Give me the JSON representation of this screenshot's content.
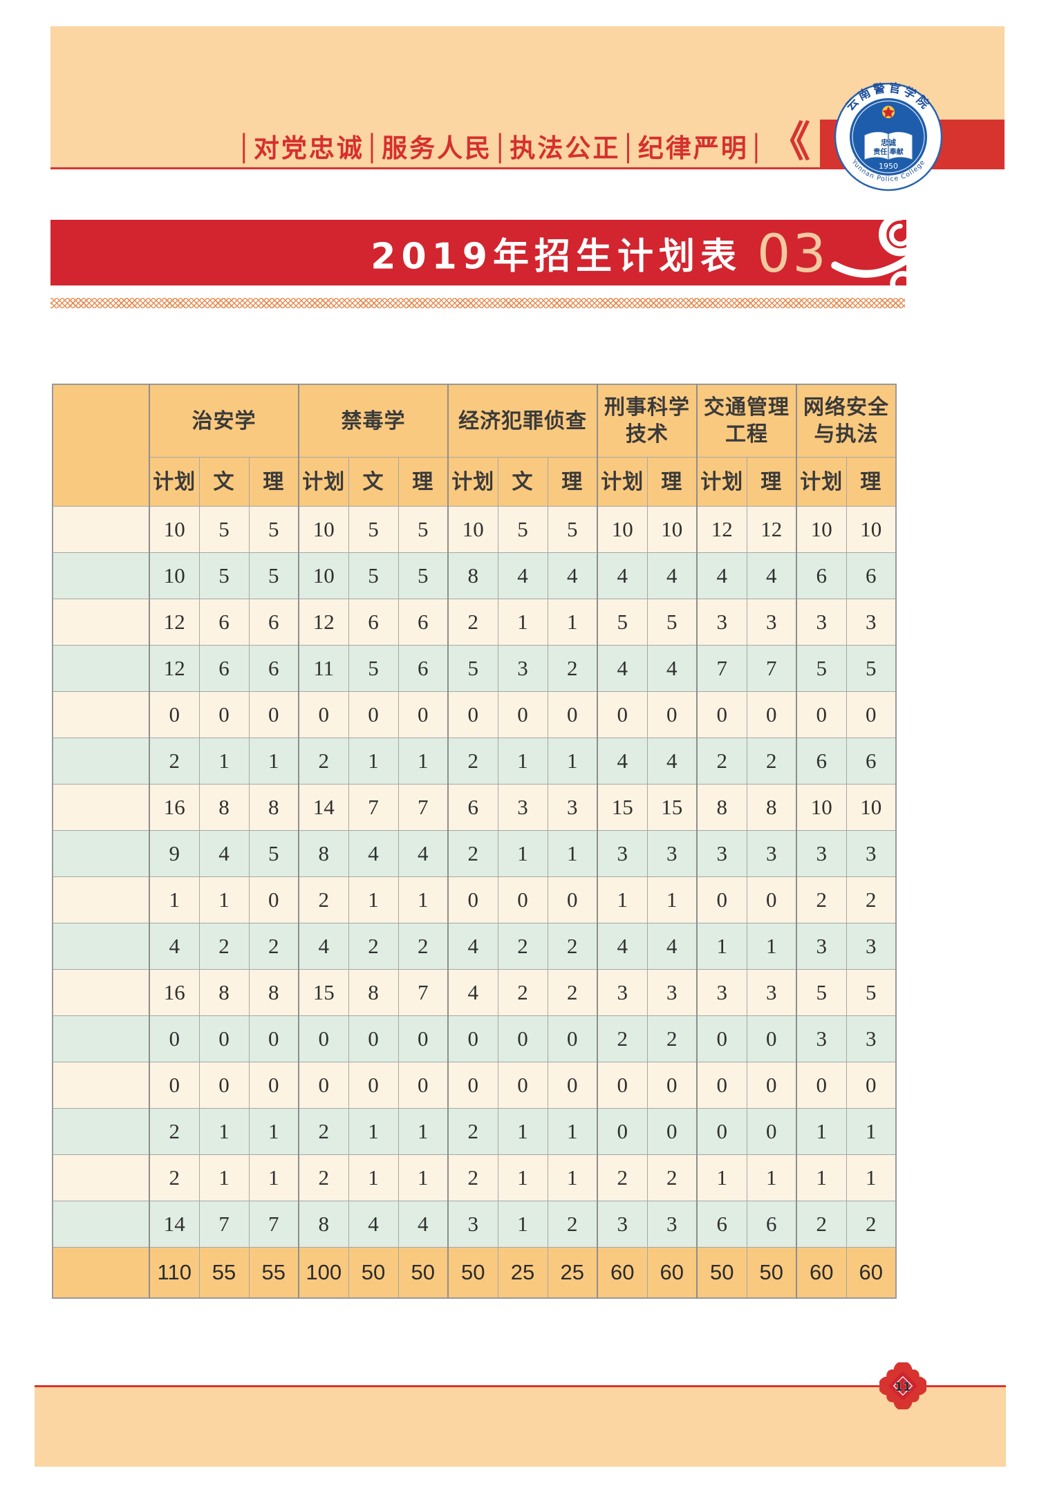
{
  "page": {
    "slogan": "│对党忠诚│服务人民│执法公正│纪律严明│",
    "banner": {
      "title": "2019年招生计划表",
      "page_no": "03"
    },
    "footer": {
      "page_no": "11"
    },
    "colors": {
      "banner_red": "#d2252f",
      "accent_red": "#d7342f",
      "panel_peach": "#fbd5a2",
      "header_orange": "#f9c97f",
      "row_cream": "#fdf3e2",
      "row_green": "#dfede3",
      "pattern_orange": "#e98a4f",
      "logo_blue": "#1e5dab"
    }
  },
  "logo": {
    "arc_top": "云南警官学院",
    "motto_line1": "忠诚",
    "motto_line2": "责任 奉献",
    "year": "1950",
    "arc_bottom": "Yunnan Police College"
  },
  "table": {
    "groups": [
      {
        "label": "治安学",
        "cols": [
          "计划",
          "文",
          "理"
        ]
      },
      {
        "label": "禁毒学",
        "cols": [
          "计划",
          "文",
          "理"
        ]
      },
      {
        "label": "经济犯罪侦查",
        "cols": [
          "计划",
          "文",
          "理"
        ]
      },
      {
        "label": "刑事科学技术",
        "cols": [
          "计划",
          "理"
        ]
      },
      {
        "label": "交通管理工程",
        "cols": [
          "计划",
          "理"
        ]
      },
      {
        "label": "网络安全与执法",
        "cols": [
          "计划",
          "理"
        ]
      }
    ],
    "rows": [
      [
        10,
        5,
        5,
        10,
        5,
        5,
        10,
        5,
        5,
        10,
        10,
        12,
        12,
        10,
        10
      ],
      [
        10,
        5,
        5,
        10,
        5,
        5,
        8,
        4,
        4,
        4,
        4,
        4,
        4,
        6,
        6
      ],
      [
        12,
        6,
        6,
        12,
        6,
        6,
        2,
        1,
        1,
        5,
        5,
        3,
        3,
        3,
        3
      ],
      [
        12,
        6,
        6,
        11,
        5,
        6,
        5,
        3,
        2,
        4,
        4,
        7,
        7,
        5,
        5
      ],
      [
        0,
        0,
        0,
        0,
        0,
        0,
        0,
        0,
        0,
        0,
        0,
        0,
        0,
        0,
        0
      ],
      [
        2,
        1,
        1,
        2,
        1,
        1,
        2,
        1,
        1,
        4,
        4,
        2,
        2,
        6,
        6
      ],
      [
        16,
        8,
        8,
        14,
        7,
        7,
        6,
        3,
        3,
        15,
        15,
        8,
        8,
        10,
        10
      ],
      [
        9,
        4,
        5,
        8,
        4,
        4,
        2,
        1,
        1,
        3,
        3,
        3,
        3,
        3,
        3
      ],
      [
        1,
        1,
        0,
        2,
        1,
        1,
        0,
        0,
        0,
        1,
        1,
        0,
        0,
        2,
        2
      ],
      [
        4,
        2,
        2,
        4,
        2,
        2,
        4,
        2,
        2,
        4,
        4,
        1,
        1,
        3,
        3
      ],
      [
        16,
        8,
        8,
        15,
        8,
        7,
        4,
        2,
        2,
        3,
        3,
        3,
        3,
        5,
        5
      ],
      [
        0,
        0,
        0,
        0,
        0,
        0,
        0,
        0,
        0,
        2,
        2,
        0,
        0,
        3,
        3
      ],
      [
        0,
        0,
        0,
        0,
        0,
        0,
        0,
        0,
        0,
        0,
        0,
        0,
        0,
        0,
        0
      ],
      [
        2,
        1,
        1,
        2,
        1,
        1,
        2,
        1,
        1,
        0,
        0,
        0,
        0,
        1,
        1
      ],
      [
        2,
        1,
        1,
        2,
        1,
        1,
        2,
        1,
        1,
        2,
        2,
        1,
        1,
        1,
        1
      ],
      [
        14,
        7,
        7,
        8,
        4,
        4,
        3,
        1,
        2,
        3,
        3,
        6,
        6,
        2,
        2
      ]
    ],
    "totals": [
      110,
      55,
      55,
      100,
      50,
      50,
      50,
      25,
      25,
      60,
      60,
      50,
      50,
      60,
      60
    ]
  }
}
